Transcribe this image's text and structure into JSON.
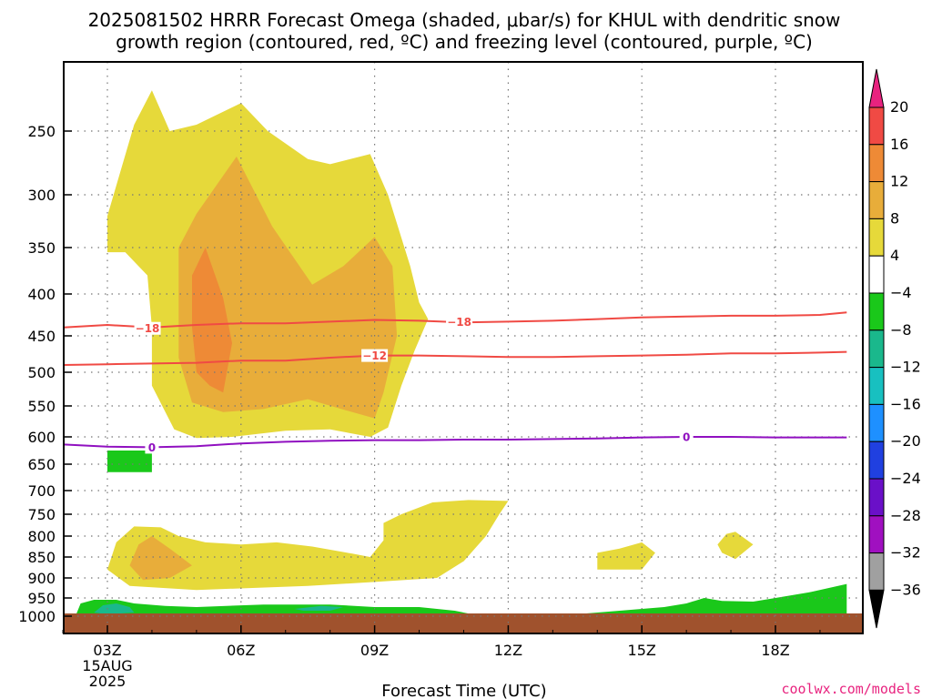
{
  "chart_data": {
    "type": "contour",
    "title_line1": "2025081502 HRRR Forecast Omega (shaded, μbar/s) for KHUL with dendritic snow",
    "title_line2": "growth region (contoured, red, ºC) and freezing level (contoured, purple, ºC)",
    "xlabel": "Forecast Time (UTC)",
    "credit": "coolwx.com/models",
    "x_ticks": [
      "03Z",
      "06Z",
      "09Z",
      "12Z",
      "15Z",
      "18Z"
    ],
    "x_tick_hours": [
      3,
      6,
      9,
      12,
      15,
      18
    ],
    "x_date_line1": "15AUG",
    "x_date_line2": "2025",
    "xlim_hours": [
      2,
      19.6
    ],
    "y_ticks": [
      250,
      300,
      350,
      400,
      450,
      500,
      550,
      600,
      650,
      700,
      750,
      800,
      850,
      900,
      950,
      1000
    ],
    "y_tick_labels": [
      "250",
      "300",
      "350",
      "400",
      "450",
      "500",
      "550",
      "600",
      "650",
      "700",
      "750",
      "800",
      "850",
      "900",
      "950",
      "1000"
    ],
    "ylim_hpa": [
      1030,
      200
    ],
    "colorbar": {
      "labels": [
        "20",
        "16",
        "12",
        "8",
        "4",
        "−4",
        "−8",
        "−12",
        "−16",
        "−20",
        "−24",
        "−28",
        "−32",
        "−36"
      ],
      "colors": [
        "#e8237f",
        "#f04a44",
        "#ee8a36",
        "#e8ad3a",
        "#e6d93a",
        "#ffffff",
        "#1ac81a",
        "#1ab88c",
        "#18c0c0",
        "#1e90ff",
        "#2040e0",
        "#6a10c8",
        "#a010c0",
        "#a0a0a0",
        "#000000"
      ]
    },
    "omega_regions": [
      {
        "level": "4 to 8",
        "color": "#e6d93a",
        "points": [
          [
            3.0,
            355
          ],
          [
            3.0,
            320
          ],
          [
            3.6,
            245
          ],
          [
            4.0,
            218
          ],
          [
            4.4,
            250
          ],
          [
            5.0,
            245
          ],
          [
            6.0,
            228
          ],
          [
            6.6,
            250
          ],
          [
            7.5,
            272
          ],
          [
            8.0,
            276
          ],
          [
            8.9,
            268
          ],
          [
            9.3,
            300
          ],
          [
            9.8,
            370
          ],
          [
            10.0,
            410
          ],
          [
            10.2,
            430
          ],
          [
            9.9,
            470
          ],
          [
            9.6,
            520
          ],
          [
            9.3,
            585
          ],
          [
            8.9,
            600
          ],
          [
            8.0,
            588
          ],
          [
            7.0,
            590
          ],
          [
            5.8,
            600
          ],
          [
            5.0,
            602
          ],
          [
            4.5,
            588
          ],
          [
            4.0,
            520
          ],
          [
            4.0,
            440
          ],
          [
            3.9,
            380
          ],
          [
            3.4,
            355
          ]
        ]
      },
      {
        "level": "8 to 12",
        "color": "#e8ad3a",
        "points": [
          [
            4.6,
            350
          ],
          [
            5.0,
            318
          ],
          [
            5.9,
            270
          ],
          [
            6.7,
            330
          ],
          [
            7.6,
            390
          ],
          [
            8.3,
            370
          ],
          [
            9.0,
            340
          ],
          [
            9.4,
            370
          ],
          [
            9.5,
            450
          ],
          [
            9.2,
            530
          ],
          [
            9.0,
            570
          ],
          [
            8.5,
            560
          ],
          [
            7.5,
            540
          ],
          [
            6.5,
            555
          ],
          [
            5.6,
            560
          ],
          [
            4.9,
            545
          ],
          [
            4.6,
            480
          ]
        ]
      },
      {
        "level": "12 to 16",
        "color": "#ee8a36",
        "points": [
          [
            4.9,
            380
          ],
          [
            5.2,
            350
          ],
          [
            5.6,
            405
          ],
          [
            5.8,
            460
          ],
          [
            5.6,
            530
          ],
          [
            5.3,
            520
          ],
          [
            5.0,
            500
          ],
          [
            4.9,
            440
          ]
        ]
      },
      {
        "level": "4 to 8",
        "color": "#e6d93a",
        "points": [
          [
            3.0,
            880
          ],
          [
            3.2,
            815
          ],
          [
            3.6,
            778
          ],
          [
            4.2,
            780
          ],
          [
            4.6,
            800
          ],
          [
            5.2,
            815
          ],
          [
            6.0,
            820
          ],
          [
            6.8,
            815
          ],
          [
            7.6,
            825
          ],
          [
            8.5,
            842
          ],
          [
            8.9,
            850
          ],
          [
            9.2,
            810
          ],
          [
            9.2,
            770
          ],
          [
            9.6,
            750
          ],
          [
            10.3,
            725
          ],
          [
            11.1,
            720
          ],
          [
            12.0,
            722
          ],
          [
            11.8,
            750
          ],
          [
            11.5,
            800
          ],
          [
            11.0,
            860
          ],
          [
            10.4,
            900
          ],
          [
            9.0,
            910
          ],
          [
            7.5,
            920
          ],
          [
            5.0,
            930
          ],
          [
            3.5,
            920
          ]
        ]
      },
      {
        "level": "8 to 12",
        "color": "#e8ad3a",
        "points": [
          [
            3.5,
            870
          ],
          [
            3.7,
            820
          ],
          [
            4.0,
            800
          ],
          [
            4.4,
            830
          ],
          [
            4.9,
            870
          ],
          [
            4.4,
            900
          ],
          [
            3.8,
            905
          ]
        ]
      },
      {
        "level": "4 to 8",
        "color": "#e6d93a",
        "points": [
          [
            14.0,
            840
          ],
          [
            14.5,
            830
          ],
          [
            15.0,
            815
          ],
          [
            15.3,
            840
          ],
          [
            15.0,
            880
          ],
          [
            14.0,
            880
          ]
        ]
      },
      {
        "level": "4 to 8",
        "color": "#e6d93a",
        "points": [
          [
            16.7,
            820
          ],
          [
            16.9,
            795
          ],
          [
            17.1,
            790
          ],
          [
            17.5,
            820
          ],
          [
            17.1,
            855
          ],
          [
            16.8,
            840
          ]
        ]
      },
      {
        "level": "-4 to -8",
        "color": "#1ac81a",
        "points": [
          [
            3.0,
            625
          ],
          [
            4.0,
            625
          ],
          [
            4.0,
            665
          ],
          [
            3.0,
            665
          ]
        ]
      },
      {
        "level": "-4 to -8",
        "color": "#1ac81a",
        "points": [
          [
            2.3,
            995
          ],
          [
            2.4,
            965
          ],
          [
            2.7,
            955
          ],
          [
            3.2,
            955
          ],
          [
            3.6,
            965
          ],
          [
            4.3,
            972
          ],
          [
            5.0,
            975
          ],
          [
            6.5,
            968
          ],
          [
            8.0,
            968
          ],
          [
            9.0,
            975
          ],
          [
            10.0,
            975
          ],
          [
            10.8,
            985
          ],
          [
            11.2,
            995
          ],
          [
            11.5,
            1010
          ],
          [
            2.3,
            1010
          ]
        ]
      },
      {
        "level": "-8 to -12",
        "color": "#1ab88c",
        "points": [
          [
            2.7,
            990
          ],
          [
            2.9,
            970
          ],
          [
            3.2,
            965
          ],
          [
            3.5,
            975
          ],
          [
            3.6,
            990
          ],
          [
            3.0,
            995
          ]
        ]
      },
      {
        "level": "-8 to -12",
        "color": "#1ab88c",
        "points": [
          [
            7.2,
            980
          ],
          [
            7.8,
            972
          ],
          [
            8.3,
            975
          ],
          [
            8.0,
            985
          ],
          [
            7.4,
            985
          ]
        ]
      },
      {
        "level": "-4 to -8",
        "color": "#1ac81a",
        "points": [
          [
            12.8,
            1000
          ],
          [
            13.5,
            995
          ],
          [
            14.5,
            985
          ],
          [
            15.5,
            975
          ],
          [
            16.0,
            965
          ],
          [
            16.4,
            950
          ],
          [
            16.8,
            958
          ],
          [
            17.5,
            960
          ],
          [
            18.0,
            950
          ],
          [
            18.8,
            935
          ],
          [
            19.6,
            915
          ],
          [
            19.6,
            1010
          ],
          [
            12.8,
            1010
          ]
        ]
      }
    ],
    "contours": [
      {
        "label": "-18",
        "color": "#f04a44",
        "points": [
          [
            2.0,
            440
          ],
          [
            3.0,
            437
          ],
          [
            4.0,
            440
          ],
          [
            5.0,
            437
          ],
          [
            6.0,
            435
          ],
          [
            7.0,
            435
          ],
          [
            8.0,
            433
          ],
          [
            9.0,
            431
          ],
          [
            10.0,
            432
          ],
          [
            11.0,
            434
          ],
          [
            12.0,
            433
          ],
          [
            13.0,
            432
          ],
          [
            14.0,
            430
          ],
          [
            15.0,
            428
          ],
          [
            16.0,
            427
          ],
          [
            17.0,
            426
          ],
          [
            18.0,
            426
          ],
          [
            19.0,
            425
          ],
          [
            19.6,
            422
          ]
        ],
        "label_positions": [
          [
            3.9,
            441
          ],
          [
            10.9,
            433
          ]
        ]
      },
      {
        "label": "-12",
        "color": "#f04a44",
        "points": [
          [
            2.0,
            490
          ],
          [
            3.0,
            489
          ],
          [
            4.0,
            488
          ],
          [
            5.0,
            487
          ],
          [
            6.0,
            484
          ],
          [
            7.0,
            484
          ],
          [
            8.0,
            480
          ],
          [
            9.0,
            477
          ],
          [
            10.0,
            477
          ],
          [
            11.0,
            478
          ],
          [
            12.0,
            479
          ],
          [
            13.0,
            479
          ],
          [
            14.0,
            478
          ],
          [
            15.0,
            477
          ],
          [
            16.0,
            476
          ],
          [
            17.0,
            474
          ],
          [
            18.0,
            474
          ],
          [
            19.0,
            473
          ],
          [
            19.6,
            472
          ]
        ],
        "label_positions": [
          [
            9.0,
            477
          ]
        ]
      },
      {
        "label": "0",
        "color": "#9010c0",
        "points": [
          [
            2.0,
            614
          ],
          [
            3.0,
            618
          ],
          [
            4.0,
            619
          ],
          [
            5.0,
            617
          ],
          [
            6.0,
            612
          ],
          [
            7.0,
            609
          ],
          [
            8.0,
            607
          ],
          [
            9.0,
            606
          ],
          [
            10.0,
            606
          ],
          [
            11.0,
            605
          ],
          [
            12.0,
            605
          ],
          [
            13.0,
            604
          ],
          [
            14.0,
            603
          ],
          [
            15.0,
            601
          ],
          [
            16.0,
            600
          ],
          [
            17.0,
            600
          ],
          [
            18.0,
            601
          ],
          [
            19.0,
            601
          ],
          [
            19.6,
            601
          ]
        ],
        "label_positions": [
          [
            4.0,
            619
          ],
          [
            16.0,
            600
          ]
        ]
      }
    ],
    "ground": {
      "color": "#a0522d",
      "top_hpa": 1000
    }
  }
}
